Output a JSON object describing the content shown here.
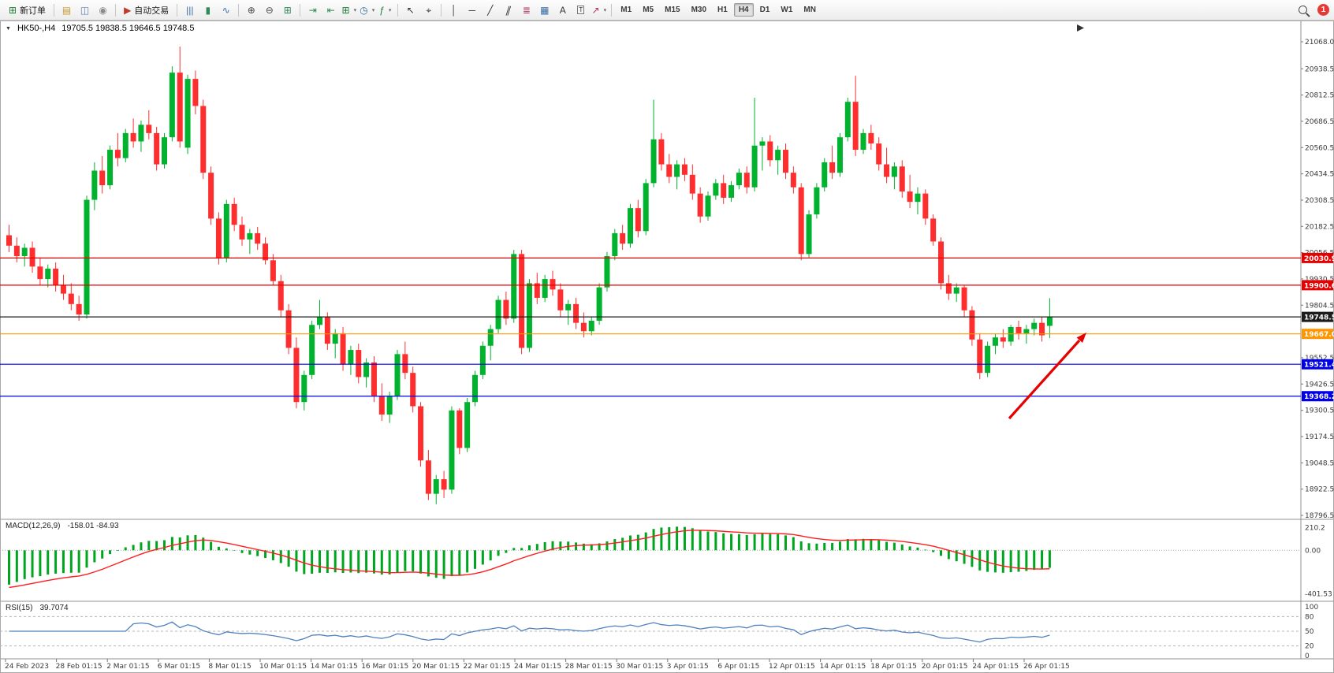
{
  "toolbar": {
    "items": [
      {
        "type": "button",
        "name": "new-order-button",
        "icon_name": "new-order-icon",
        "icon": "⊞",
        "color": "#1e7e34",
        "label": "新订单"
      },
      {
        "type": "sep"
      },
      {
        "type": "icon",
        "name": "market-watch-button",
        "icon_name": "market-watch-icon",
        "icon": "▤",
        "color": "#c89b2a"
      },
      {
        "type": "icon",
        "name": "data-window-button",
        "icon_name": "data-window-icon",
        "icon": "◫",
        "color": "#5b7fb4"
      },
      {
        "type": "icon",
        "name": "navigator-button",
        "icon_name": "navigator-icon",
        "icon": "◉",
        "color": "#8a8a8a"
      },
      {
        "type": "sep"
      },
      {
        "type": "button",
        "name": "autotrading-button",
        "icon_name": "autotrading-icon",
        "icon": "▶",
        "color": "#c0392b",
        "label": "自动交易"
      },
      {
        "type": "sep"
      },
      {
        "type": "icon",
        "name": "bar-chart-type-button",
        "icon_name": "bar-chart-icon",
        "icon": "|||",
        "color": "#3a6ea5"
      },
      {
        "type": "icon",
        "name": "candle-chart-type-button",
        "icon_name": "candlestick-icon",
        "icon": "▮",
        "color": "#2e8b57"
      },
      {
        "type": "icon",
        "name": "line-chart-type-button",
        "icon_name": "line-chart-icon",
        "icon": "∿",
        "color": "#3a6ea5"
      },
      {
        "type": "sep"
      },
      {
        "type": "icon",
        "name": "zoom-in-button",
        "icon_name": "zoom-in-icon",
        "icon": "⊕",
        "color": "#444444"
      },
      {
        "type": "icon",
        "name": "zoom-out-button",
        "icon_name": "zoom-out-icon",
        "icon": "⊖",
        "color": "#444444"
      },
      {
        "type": "icon",
        "name": "tile-windows-button",
        "icon_name": "tile-windows-icon",
        "icon": "⊞",
        "color": "#2e8b57"
      },
      {
        "type": "sep"
      },
      {
        "type": "icon",
        "name": "auto-scroll-button",
        "icon_name": "auto-scroll-icon",
        "icon": "⇥",
        "color": "#2e8b57"
      },
      {
        "type": "icon",
        "name": "chart-shift-button",
        "icon_name": "chart-shift-icon",
        "icon": "⇤",
        "color": "#2e8b57"
      },
      {
        "type": "dropdown",
        "name": "new-chart-button",
        "icon_name": "new-chart-icon",
        "icon": "⊞",
        "color": "#1e7e34"
      },
      {
        "type": "dropdown",
        "name": "periods-button",
        "icon_name": "clock-icon",
        "icon": "◷",
        "color": "#3a6ea5"
      },
      {
        "type": "dropdown",
        "name": "indicators-button",
        "icon_name": "indicators-icon",
        "icon": "ƒ",
        "color": "#1e7e34"
      },
      {
        "type": "sep"
      },
      {
        "type": "icon",
        "name": "cursor-button",
        "icon_name": "cursor-icon",
        "icon": "↖",
        "color": "#333333"
      },
      {
        "type": "icon",
        "name": "crosshair-button",
        "icon_name": "crosshair-icon",
        "icon": "⌖",
        "color": "#333333"
      },
      {
        "type": "sep"
      },
      {
        "type": "icon",
        "name": "vertical-line-button",
        "icon_name": "vertical-line-icon",
        "icon": "│",
        "color": "#333333"
      },
      {
        "type": "icon",
        "name": "horizontal-line-button",
        "icon_name": "horizontal-line-icon",
        "icon": "─",
        "color": "#333333"
      },
      {
        "type": "icon",
        "name": "trendline-button",
        "icon_name": "trendline-icon",
        "icon": "╱",
        "color": "#333333"
      },
      {
        "type": "icon",
        "name": "channel-button",
        "icon_name": "channel-icon",
        "icon": "∥",
        "color": "#333333",
        "skew": true
      },
      {
        "type": "icon",
        "name": "fibonacci-button",
        "icon_name": "fibonacci-icon",
        "icon": "≣",
        "color": "#b03060"
      },
      {
        "type": "icon",
        "name": "shapes-button",
        "icon_name": "shapes-icon",
        "icon": "▦",
        "color": "#3a6ea5"
      },
      {
        "type": "icon",
        "name": "text-button",
        "icon_name": "text-icon",
        "icon": "A",
        "color": "#333333"
      },
      {
        "type": "icon",
        "name": "label-button",
        "icon_name": "label-icon",
        "icon": "T",
        "color": "#333333",
        "boxed": true
      },
      {
        "type": "dropdown",
        "name": "arrows-button",
        "icon_name": "arrow-objects-icon",
        "icon": "↗",
        "color": "#b03060"
      },
      {
        "type": "sep"
      },
      {
        "type": "tf",
        "name": "timeframe-m1-button",
        "label": "M1"
      },
      {
        "type": "tf",
        "name": "timeframe-m5-button",
        "label": "M5"
      },
      {
        "type": "tf",
        "name": "timeframe-m15-button",
        "label": "M15"
      },
      {
        "type": "tf",
        "name": "timeframe-m30-button",
        "label": "M30"
      },
      {
        "type": "tf",
        "name": "timeframe-h1-button",
        "label": "H1"
      },
      {
        "type": "tf",
        "name": "timeframe-h4-button",
        "label": "H4",
        "active": true
      },
      {
        "type": "tf",
        "name": "timeframe-d1-button",
        "label": "D1"
      },
      {
        "type": "tf",
        "name": "timeframe-w1-button",
        "label": "W1"
      },
      {
        "type": "tf",
        "name": "timeframe-mn-button",
        "label": "MN"
      },
      {
        "type": "spacer"
      },
      {
        "type": "search",
        "name": "search-button"
      },
      {
        "type": "badge",
        "name": "notification-badge",
        "label": "1"
      }
    ]
  },
  "chart": {
    "dropdown_glyph": "▼",
    "title": "HK50-,H4",
    "ohlc": "19705.5 19838.5 19646.5 19748.5"
  },
  "chart_data": {
    "type": "candlestick",
    "symbol": "HK50-",
    "timeframe": "H4",
    "last_bar": {
      "open": 19705.5,
      "high": 19838.5,
      "low": 19646.5,
      "close": 19748.5
    },
    "y_min": 18796.5,
    "y_max": 21068.0,
    "up_color": "#00b22d",
    "down_color": "#ff2e2e",
    "price_axis_labels": [
      "21068.0",
      "20938.5",
      "20812.5",
      "20686.5",
      "20560.5",
      "20434.5",
      "20308.5",
      "20182.5",
      "20056.5",
      "19930.5",
      "19804.5",
      "19678.5",
      "19552.5",
      "19426.5",
      "19300.5",
      "19174.5",
      "19048.5",
      "18922.5",
      "18796.5"
    ],
    "x_axis_labels": [
      "24 Feb 2023",
      "28 Feb 01:15",
      "2 Mar 01:15",
      "6 Mar 01:15",
      "8 Mar 01:15",
      "10 Mar 01:15",
      "14 Mar 01:15",
      "16 Mar 01:15",
      "20 Mar 01:15",
      "22 Mar 01:15",
      "24 Mar 01:15",
      "28 Mar 01:15",
      "30 Mar 01:15",
      "3 Apr 01:15",
      "6 Apr 01:15",
      "12 Apr 01:15",
      "14 Apr 01:15",
      "18 Apr 01:15",
      "20 Apr 01:15",
      "24 Apr 01:15",
      "26 Apr 01:15"
    ],
    "hlines": [
      {
        "price": 20030.9,
        "label": "20030.9",
        "color": "#e60000"
      },
      {
        "price": 19900.6,
        "label": "19900.6",
        "color": "#e60000"
      },
      {
        "price": 19748.5,
        "label": "19748.5",
        "color": "#1c1c1c"
      },
      {
        "price": 19667.0,
        "label": "19667.0",
        "color": "#ff9500"
      },
      {
        "price": 19521.4,
        "label": "19521.4",
        "color": "#0000e6"
      },
      {
        "price": 19368.2,
        "label": "19368.2",
        "color": "#0000e6"
      }
    ],
    "candles": [
      [
        20140,
        20190,
        20060,
        20090
      ],
      [
        20090,
        20130,
        20010,
        20040
      ],
      [
        20040,
        20100,
        19990,
        20080
      ],
      [
        20080,
        20110,
        19960,
        19990
      ],
      [
        19990,
        20030,
        19900,
        19930
      ],
      [
        19930,
        20000,
        19890,
        19980
      ],
      [
        19980,
        20010,
        19870,
        19900
      ],
      [
        19900,
        19950,
        19830,
        19860
      ],
      [
        19860,
        19910,
        19780,
        19810
      ],
      [
        19810,
        19850,
        19730,
        19760
      ],
      [
        19760,
        20330,
        19740,
        20310
      ],
      [
        20310,
        20490,
        20260,
        20450
      ],
      [
        20450,
        20520,
        20340,
        20380
      ],
      [
        20380,
        20570,
        20360,
        20550
      ],
      [
        20550,
        20630,
        20470,
        20510
      ],
      [
        20510,
        20650,
        20490,
        20630
      ],
      [
        20630,
        20700,
        20560,
        20590
      ],
      [
        20590,
        20690,
        20540,
        20670
      ],
      [
        20670,
        20740,
        20600,
        20630
      ],
      [
        20630,
        20660,
        20450,
        20480
      ],
      [
        20480,
        20630,
        20460,
        20610
      ],
      [
        20610,
        20950,
        20590,
        20920
      ],
      [
        20920,
        21045,
        20560,
        20590
      ],
      [
        20560,
        20910,
        20530,
        20890
      ],
      [
        20890,
        20930,
        20720,
        20760
      ],
      [
        20760,
        20790,
        20410,
        20440
      ],
      [
        20440,
        20470,
        20190,
        20220
      ],
      [
        20220,
        20250,
        20000,
        20030
      ],
      [
        20030,
        20310,
        20010,
        20290
      ],
      [
        20290,
        20320,
        20160,
        20190
      ],
      [
        20190,
        20230,
        20090,
        20120
      ],
      [
        20120,
        20170,
        20050,
        20150
      ],
      [
        20150,
        20180,
        20070,
        20100
      ],
      [
        20100,
        20130,
        20000,
        20020
      ],
      [
        20020,
        20050,
        19900,
        19920
      ],
      [
        19920,
        19950,
        19750,
        19780
      ],
      [
        19780,
        19810,
        19570,
        19600
      ],
      [
        19600,
        19650,
        19310,
        19340
      ],
      [
        19340,
        19490,
        19300,
        19470
      ],
      [
        19470,
        19730,
        19450,
        19710
      ],
      [
        19710,
        19830,
        19690,
        19750
      ],
      [
        19750,
        19770,
        19590,
        19620
      ],
      [
        19620,
        19690,
        19550,
        19670
      ],
      [
        19670,
        19700,
        19490,
        19520
      ],
      [
        19520,
        19610,
        19470,
        19590
      ],
      [
        19590,
        19620,
        19430,
        19460
      ],
      [
        19460,
        19550,
        19410,
        19530
      ],
      [
        19530,
        19560,
        19340,
        19370
      ],
      [
        19370,
        19430,
        19250,
        19280
      ],
      [
        19280,
        19390,
        19240,
        19370
      ],
      [
        19370,
        19590,
        19350,
        19570
      ],
      [
        19570,
        19630,
        19450,
        19480
      ],
      [
        19480,
        19510,
        19290,
        19320
      ],
      [
        19320,
        19340,
        19030,
        19060
      ],
      [
        19060,
        19110,
        18870,
        18900
      ],
      [
        18900,
        18990,
        18850,
        18970
      ],
      [
        18970,
        19010,
        18880,
        18920
      ],
      [
        18920,
        19320,
        18900,
        19300
      ],
      [
        19300,
        19310,
        19090,
        19120
      ],
      [
        19120,
        19360,
        19100,
        19340
      ],
      [
        19340,
        19490,
        19320,
        19470
      ],
      [
        19470,
        19630,
        19450,
        19610
      ],
      [
        19610,
        19710,
        19540,
        19690
      ],
      [
        19690,
        19850,
        19670,
        19830
      ],
      [
        19830,
        19870,
        19710,
        19740
      ],
      [
        19740,
        20070,
        19720,
        20050
      ],
      [
        20050,
        20070,
        19570,
        19600
      ],
      [
        19600,
        19930,
        19580,
        19910
      ],
      [
        19910,
        19960,
        19810,
        19840
      ],
      [
        19840,
        19950,
        19820,
        19930
      ],
      [
        19930,
        19970,
        19850,
        19880
      ],
      [
        19880,
        19910,
        19750,
        19780
      ],
      [
        19780,
        19830,
        19710,
        19810
      ],
      [
        19810,
        19840,
        19690,
        19720
      ],
      [
        19720,
        19770,
        19650,
        19680
      ],
      [
        19680,
        19750,
        19660,
        19730
      ],
      [
        19730,
        19910,
        19710,
        19890
      ],
      [
        19890,
        20060,
        19870,
        20040
      ],
      [
        20040,
        20170,
        20020,
        20150
      ],
      [
        20150,
        20190,
        20070,
        20100
      ],
      [
        20100,
        20290,
        20080,
        20270
      ],
      [
        20270,
        20310,
        20130,
        20160
      ],
      [
        20160,
        20410,
        20140,
        20390
      ],
      [
        20390,
        20790,
        20370,
        20600
      ],
      [
        20600,
        20630,
        20450,
        20480
      ],
      [
        20480,
        20530,
        20390,
        20420
      ],
      [
        20420,
        20500,
        20360,
        20480
      ],
      [
        20480,
        20510,
        20400,
        20430
      ],
      [
        20430,
        20480,
        20310,
        20340
      ],
      [
        20340,
        20370,
        20200,
        20230
      ],
      [
        20230,
        20350,
        20210,
        20330
      ],
      [
        20330,
        20410,
        20310,
        20390
      ],
      [
        20390,
        20430,
        20290,
        20320
      ],
      [
        20320,
        20400,
        20300,
        20380
      ],
      [
        20380,
        20460,
        20360,
        20440
      ],
      [
        20440,
        20470,
        20340,
        20370
      ],
      [
        20370,
        20800,
        20350,
        20570
      ],
      [
        20570,
        20610,
        20450,
        20590
      ],
      [
        20590,
        20620,
        20470,
        20500
      ],
      [
        20500,
        20570,
        20430,
        20550
      ],
      [
        20550,
        20580,
        20410,
        20440
      ],
      [
        20440,
        20470,
        20340,
        20370
      ],
      [
        20370,
        20390,
        20020,
        20050
      ],
      [
        20050,
        20260,
        20030,
        20240
      ],
      [
        20240,
        20390,
        20220,
        20370
      ],
      [
        20370,
        20510,
        20350,
        20490
      ],
      [
        20490,
        20570,
        20410,
        20440
      ],
      [
        20440,
        20630,
        20420,
        20610
      ],
      [
        20610,
        20800,
        20590,
        20780
      ],
      [
        20780,
        20905,
        20520,
        20550
      ],
      [
        20550,
        20650,
        20530,
        20630
      ],
      [
        20630,
        20670,
        20550,
        20580
      ],
      [
        20580,
        20610,
        20450,
        20480
      ],
      [
        20480,
        20560,
        20390,
        20420
      ],
      [
        20420,
        20490,
        20360,
        20470
      ],
      [
        20470,
        20500,
        20320,
        20350
      ],
      [
        20350,
        20430,
        20270,
        20300
      ],
      [
        20300,
        20370,
        20240,
        20340
      ],
      [
        20340,
        20360,
        20190,
        20220
      ],
      [
        20220,
        20240,
        20090,
        20110
      ],
      [
        20110,
        20130,
        19880,
        19910
      ],
      [
        19910,
        19950,
        19830,
        19860
      ],
      [
        19860,
        19910,
        19820,
        19890
      ],
      [
        19890,
        19900,
        19750,
        19780
      ],
      [
        19780,
        19800,
        19610,
        19640
      ],
      [
        19640,
        19670,
        19450,
        19480
      ],
      [
        19480,
        19630,
        19460,
        19610
      ],
      [
        19610,
        19670,
        19570,
        19650
      ],
      [
        19650,
        19690,
        19600,
        19630
      ],
      [
        19630,
        19710,
        19610,
        19700
      ],
      [
        19700,
        19730,
        19640,
        19670
      ],
      [
        19670,
        19710,
        19620,
        19690
      ],
      [
        19690,
        19740,
        19660,
        19720
      ],
      [
        19720,
        19750,
        19630,
        19660
      ],
      [
        19705.5,
        19838.5,
        19646.5,
        19748.5
      ]
    ],
    "macd": {
      "label": "MACD(12,26,9)",
      "values_text": "-158.01 -84.93",
      "axis_labels": [
        "210.2",
        "0.00",
        "-401.53"
      ],
      "histogram_color": "#00a51f",
      "signal_color": "#ff1e1e"
    },
    "rsi": {
      "label": "RSI(15)",
      "value_text": "39.7074",
      "axis_labels": [
        "100",
        "80",
        "50",
        "20",
        "0"
      ],
      "levels": [
        80,
        50,
        20
      ],
      "line_color": "#4f81bd"
    },
    "annotation_arrow": {
      "color": "#e60000"
    }
  }
}
